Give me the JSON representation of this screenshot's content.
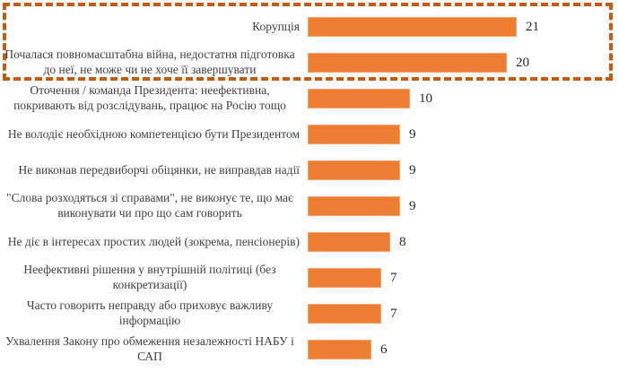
{
  "chart_data": {
    "type": "bar",
    "orientation": "horizontal",
    "title": "",
    "xlabel": "",
    "ylabel": "",
    "categories": [
      "Корупція",
      "Почалася повномасштабна війна, недостатня підготовка до неї, не може чи не хоче її завершувати",
      "Оточення / команда Президента: неефективна, покривають від розслідувань, працює на Росію тощо",
      "Не володіє необхідною компетенцією бути Президентом",
      "Не виконав передвиборчі обіцянки, не виправдав надії",
      "\"Слова розходяться зі справами\", не виконує те, що має виконувати чи про що сам говорить",
      "Не діє в інтересах простих людей (зокрема, пенсіонерів)",
      "Неефективні рішення у внутрішній політиці (без конкретизації)",
      "Часто говорить неправду або приховує важливу інформацію",
      "Ухвалення Закону про обмеження незалежності НАБУ і САП"
    ],
    "values": [
      21,
      20,
      10,
      9,
      9,
      9,
      8,
      7,
      7,
      6
    ],
    "data_labels": true,
    "legend": false,
    "grid": false,
    "xlim": [
      0,
      22
    ],
    "annotations": [
      {
        "type": "dashed-rectangle",
        "highlighted_rows": [
          0,
          1
        ],
        "note": "top two categories outlined"
      }
    ]
  },
  "colors": {
    "bar_fill": "#ED7D31",
    "bar_edge": "#F2A168",
    "highlight_border": "#C55A11",
    "label_text": "#404040",
    "value_text": "#262626",
    "background": "#FFFFFF"
  }
}
